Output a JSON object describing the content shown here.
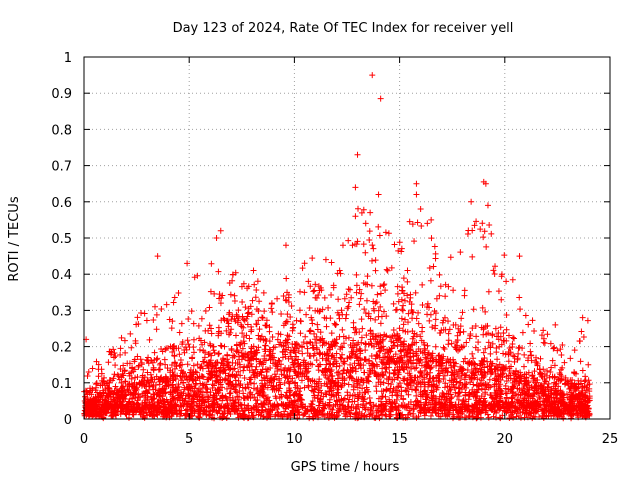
{
  "chart_data": {
    "type": "scatter",
    "title": "Day 123 of 2024, Rate Of TEC Index for receiver yell",
    "xlabel": "GPS time / hours",
    "ylabel": "ROTI / TECUs",
    "xlim": [
      0,
      25
    ],
    "ylim": [
      0,
      1
    ],
    "grid": true,
    "marker": "+",
    "series_color": "#ff0000",
    "x_ticks": [
      "0",
      "5",
      "10",
      "15",
      "20",
      "25"
    ],
    "y_ticks": [
      "0",
      "0.1",
      "0.2",
      "0.3",
      "0.4",
      "0.5",
      "0.6",
      "0.7",
      "0.8",
      "0.9",
      "1"
    ],
    "envelope": {
      "x": [
        0,
        1,
        2,
        3,
        4,
        5,
        6,
        7,
        8,
        9,
        10,
        11,
        12,
        13,
        14,
        15,
        16,
        17,
        18,
        19,
        20,
        21,
        22,
        23,
        24
      ],
      "typical": [
        0.04,
        0.05,
        0.07,
        0.08,
        0.09,
        0.1,
        0.12,
        0.13,
        0.15,
        0.15,
        0.16,
        0.17,
        0.16,
        0.18,
        0.18,
        0.17,
        0.15,
        0.13,
        0.12,
        0.12,
        0.11,
        0.09,
        0.07,
        0.05,
        0.05
      ],
      "upper": [
        0.15,
        0.17,
        0.25,
        0.32,
        0.33,
        0.4,
        0.46,
        0.4,
        0.43,
        0.35,
        0.45,
        0.45,
        0.48,
        0.6,
        0.55,
        0.5,
        0.6,
        0.45,
        0.5,
        0.58,
        0.45,
        0.3,
        0.25,
        0.2,
        0.3
      ]
    },
    "outliers": [
      {
        "x": 13.7,
        "y": 0.95
      },
      {
        "x": 14.1,
        "y": 0.885
      },
      {
        "x": 13.0,
        "y": 0.73
      },
      {
        "x": 12.9,
        "y": 0.64
      },
      {
        "x": 14.0,
        "y": 0.62
      },
      {
        "x": 15.8,
        "y": 0.65
      },
      {
        "x": 15.8,
        "y": 0.62
      },
      {
        "x": 19.0,
        "y": 0.655
      },
      {
        "x": 19.1,
        "y": 0.65
      },
      {
        "x": 18.4,
        "y": 0.6
      },
      {
        "x": 19.2,
        "y": 0.59
      },
      {
        "x": 6.5,
        "y": 0.52
      },
      {
        "x": 6.3,
        "y": 0.5
      },
      {
        "x": 9.6,
        "y": 0.48
      },
      {
        "x": 0.1,
        "y": 0.22
      },
      {
        "x": 3.5,
        "y": 0.45
      },
      {
        "x": 4.9,
        "y": 0.43
      },
      {
        "x": 12.9,
        "y": 0.56
      },
      {
        "x": 16.5,
        "y": 0.55
      },
      {
        "x": 20.7,
        "y": 0.45
      },
      {
        "x": 22.4,
        "y": 0.26
      },
      {
        "x": 23.7,
        "y": 0.28
      },
      {
        "x": 13.6,
        "y": 0.57
      },
      {
        "x": 16.0,
        "y": 0.58
      }
    ]
  }
}
